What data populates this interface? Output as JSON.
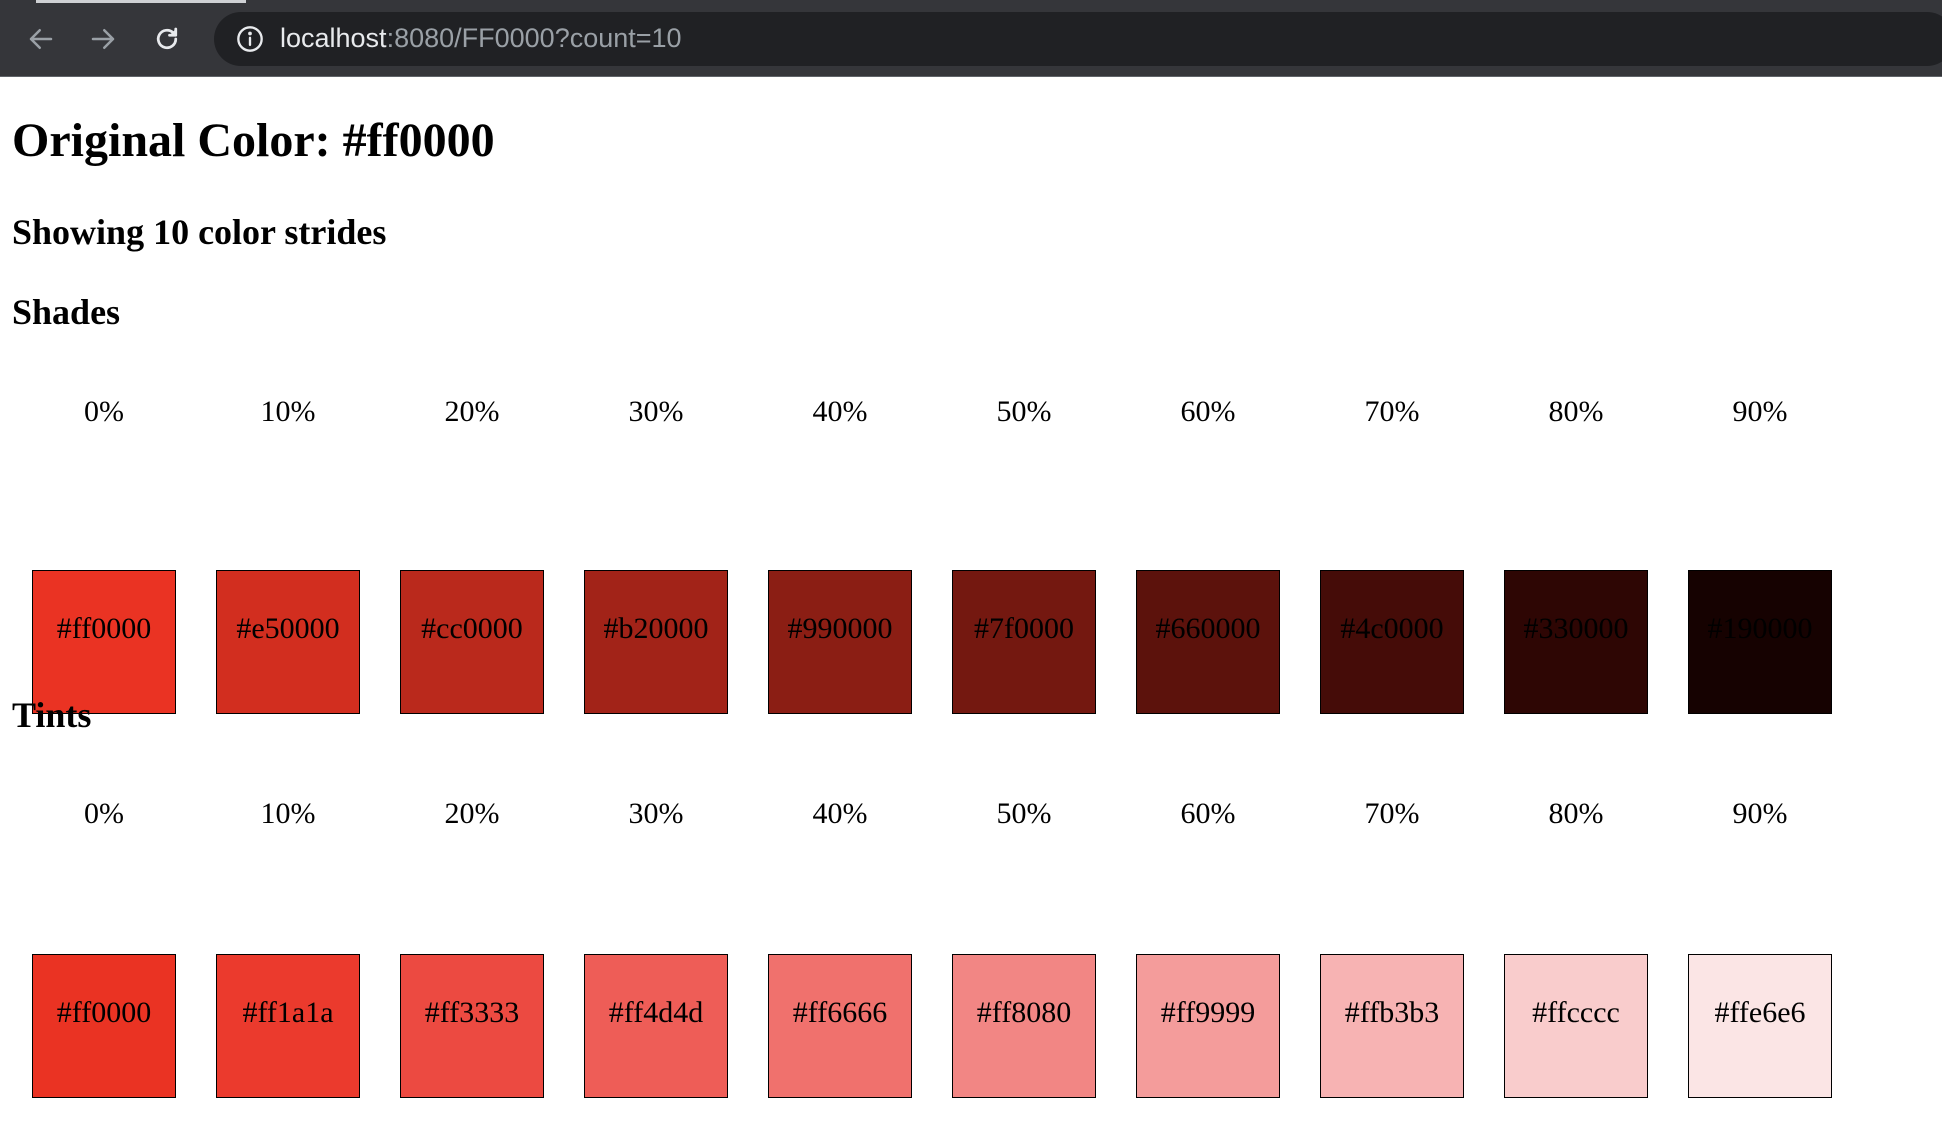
{
  "browser": {
    "url_host": "localhost",
    "url_rest": ":8080/FF0000?count=10"
  },
  "page": {
    "title": "Original Color: #ff0000",
    "subtitle": "Showing 10 color strides",
    "shades_title": "Shades",
    "tints_title": "Tints"
  },
  "shades": [
    {
      "pct": "0%",
      "hex": "#ff0000",
      "color": "#ea3323"
    },
    {
      "pct": "10%",
      "hex": "#e50000",
      "color": "#d22e1f"
    },
    {
      "pct": "20%",
      "hex": "#cc0000",
      "color": "#ba291c"
    },
    {
      "pct": "30%",
      "hex": "#b20000",
      "color": "#a22318"
    },
    {
      "pct": "40%",
      "hex": "#990000",
      "color": "#8b1e14"
    },
    {
      "pct": "50%",
      "hex": "#7f0000",
      "color": "#741810"
    },
    {
      "pct": "60%",
      "hex": "#660000",
      "color": "#5c120c"
    },
    {
      "pct": "70%",
      "hex": "#4c0000",
      "color": "#450c08"
    },
    {
      "pct": "80%",
      "hex": "#330000",
      "color": "#2e0604"
    },
    {
      "pct": "90%",
      "hex": "#190000",
      "color": "#160201"
    }
  ],
  "tints": [
    {
      "pct": "0%",
      "hex": "#ff0000",
      "color": "#ea3323"
    },
    {
      "pct": "10%",
      "hex": "#ff1a1a",
      "color": "#eb3a2d"
    },
    {
      "pct": "20%",
      "hex": "#ff3333",
      "color": "#ec4a41"
    },
    {
      "pct": "30%",
      "hex": "#ff4d4d",
      "color": "#ee5d57"
    },
    {
      "pct": "40%",
      "hex": "#ff6666",
      "color": "#f0716d"
    },
    {
      "pct": "50%",
      "hex": "#ff8080",
      "color": "#f28684"
    },
    {
      "pct": "60%",
      "hex": "#ff9999",
      "color": "#f49c9b"
    },
    {
      "pct": "70%",
      "hex": "#ffb3b3",
      "color": "#f7b3b3"
    },
    {
      "pct": "80%",
      "hex": "#ffcccc",
      "color": "#f9cccc"
    },
    {
      "pct": "90%",
      "hex": "#ffe6e6",
      "color": "#fbe5e5"
    }
  ]
}
